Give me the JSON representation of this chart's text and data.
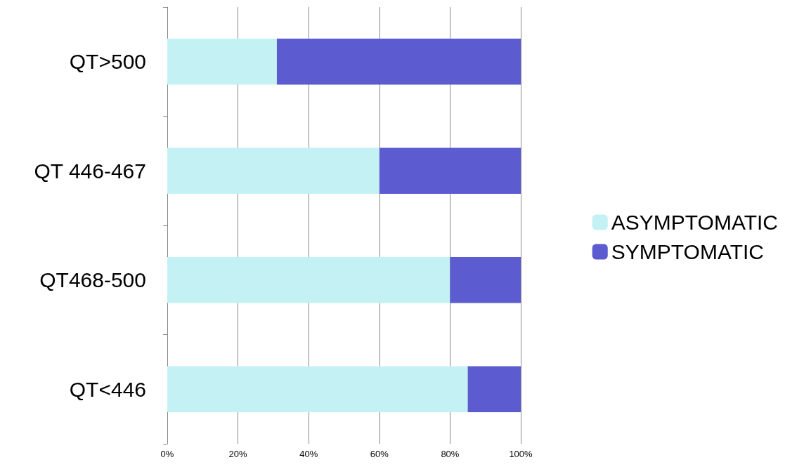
{
  "chart_data": {
    "type": "bar",
    "orientation": "horizontal",
    "stacked": true,
    "categories": [
      "QT>500",
      "QT 446-467",
      "QT468-500",
      "QT<446"
    ],
    "series": [
      {
        "name": "ASYMPTOMATIC",
        "color": "#c4f2f4",
        "values": [
          31,
          60,
          80,
          85
        ]
      },
      {
        "name": "SYMPTOMATIC",
        "color": "#5c5cd0",
        "values": [
          69,
          40,
          20,
          15
        ]
      }
    ],
    "xlim": [
      0,
      100
    ],
    "xticks": [
      {
        "value": 0,
        "label": "0%"
      },
      {
        "value": 20,
        "label": "20%"
      },
      {
        "value": 40,
        "label": "40%"
      },
      {
        "value": 60,
        "label": "60%"
      },
      {
        "value": 80,
        "label": "80%"
      },
      {
        "value": 100,
        "label": "100%"
      }
    ],
    "grid": "x",
    "legend": "right"
  }
}
